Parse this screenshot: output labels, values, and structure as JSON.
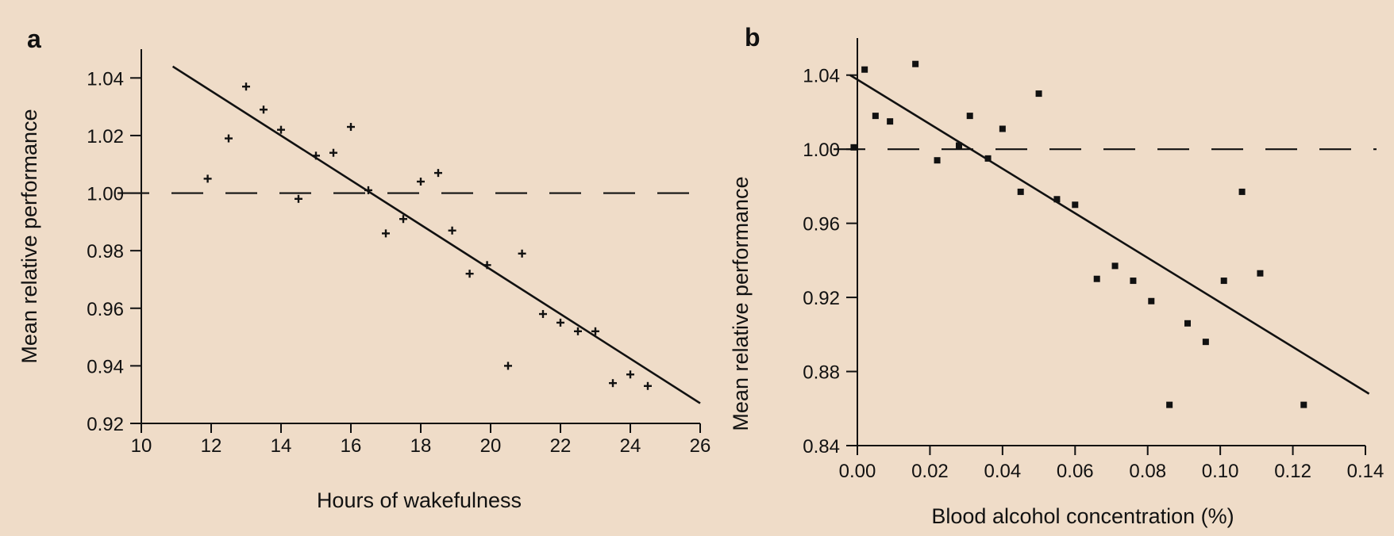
{
  "colors": {
    "background": "#efdcc8",
    "ink": "#111111"
  },
  "chart_data": [
    {
      "type": "scatter",
      "panel_label": "a",
      "title": "",
      "xlabel": "Hours of wakefulness",
      "ylabel": "Mean relative performance",
      "xlim": [
        10,
        26
      ],
      "ylim": [
        0.92,
        1.05
      ],
      "xticks": [
        10,
        12,
        14,
        16,
        18,
        20,
        22,
        24,
        26
      ],
      "xtick_labels": [
        "10",
        "12",
        "14",
        "16",
        "18",
        "20",
        "22",
        "24",
        "26"
      ],
      "yticks": [
        0.92,
        0.94,
        0.96,
        0.98,
        1.0,
        1.02,
        1.04
      ],
      "ytick_labels": [
        "0.92",
        "0.94",
        "0.96",
        "0.98",
        "1.00",
        "1.02",
        "1.04"
      ],
      "grid": false,
      "reference_line": {
        "y": 1.0,
        "style": "dashed"
      },
      "regression_line": {
        "x": [
          10.9,
          26.0
        ],
        "y": [
          1.044,
          0.927
        ]
      },
      "series": [
        {
          "points": [
            [
              11.9,
              1.005
            ],
            [
              12.5,
              1.019
            ],
            [
              13.0,
              1.037
            ],
            [
              13.5,
              1.029
            ],
            [
              14.0,
              1.022
            ],
            [
              14.5,
              0.998
            ],
            [
              15.0,
              1.013
            ],
            [
              15.5,
              1.014
            ],
            [
              16.0,
              1.023
            ],
            [
              16.5,
              1.001
            ],
            [
              17.0,
              0.986
            ],
            [
              17.5,
              0.991
            ],
            [
              18.0,
              1.004
            ],
            [
              18.5,
              1.007
            ],
            [
              18.9,
              0.987
            ],
            [
              19.4,
              0.972
            ],
            [
              19.9,
              0.975
            ],
            [
              20.5,
              0.94
            ],
            [
              20.9,
              0.979
            ],
            [
              21.5,
              0.958
            ],
            [
              22.0,
              0.955
            ],
            [
              22.5,
              0.952
            ],
            [
              23.0,
              0.952
            ],
            [
              23.5,
              0.934
            ],
            [
              24.0,
              0.937
            ],
            [
              24.5,
              0.933
            ]
          ]
        }
      ]
    },
    {
      "type": "scatter",
      "panel_label": "b",
      "title": "",
      "xlabel": "Blood alcohol concentration (%)",
      "ylabel": "Mean relative performance",
      "xlim": [
        0.0,
        0.14
      ],
      "ylim": [
        0.84,
        1.06
      ],
      "xticks": [
        0.0,
        0.02,
        0.04,
        0.06,
        0.08,
        0.1,
        0.12,
        0.14
      ],
      "xtick_labels": [
        "0.00",
        "0.02",
        "0.04",
        "0.06",
        "0.08",
        "0.10",
        "0.12",
        "0.14"
      ],
      "yticks": [
        0.84,
        0.88,
        0.92,
        0.96,
        1.0,
        1.04
      ],
      "ytick_labels": [
        "0.84",
        "0.88",
        "0.92",
        "0.96",
        "1.00",
        "1.04"
      ],
      "grid": false,
      "reference_line": {
        "y": 1.0,
        "style": "dashed"
      },
      "regression_line": {
        "x": [
          -0.002,
          0.141
        ],
        "y": [
          1.04,
          0.868
        ]
      },
      "series": [
        {
          "points": [
            [
              -0.001,
              1.001
            ],
            [
              0.002,
              1.043
            ],
            [
              0.005,
              1.018
            ],
            [
              0.009,
              1.015
            ],
            [
              0.016,
              1.046
            ],
            [
              0.022,
              0.994
            ],
            [
              0.028,
              1.002
            ],
            [
              0.031,
              1.018
            ],
            [
              0.036,
              0.995
            ],
            [
              0.04,
              1.011
            ],
            [
              0.045,
              0.977
            ],
            [
              0.05,
              1.03
            ],
            [
              0.055,
              0.973
            ],
            [
              0.06,
              0.97
            ],
            [
              0.066,
              0.93
            ],
            [
              0.071,
              0.937
            ],
            [
              0.076,
              0.929
            ],
            [
              0.081,
              0.918
            ],
            [
              0.086,
              0.862
            ],
            [
              0.091,
              0.906
            ],
            [
              0.096,
              0.896
            ],
            [
              0.101,
              0.929
            ],
            [
              0.106,
              0.977
            ],
            [
              0.111,
              0.933
            ],
            [
              0.123,
              0.862
            ]
          ]
        }
      ]
    }
  ]
}
